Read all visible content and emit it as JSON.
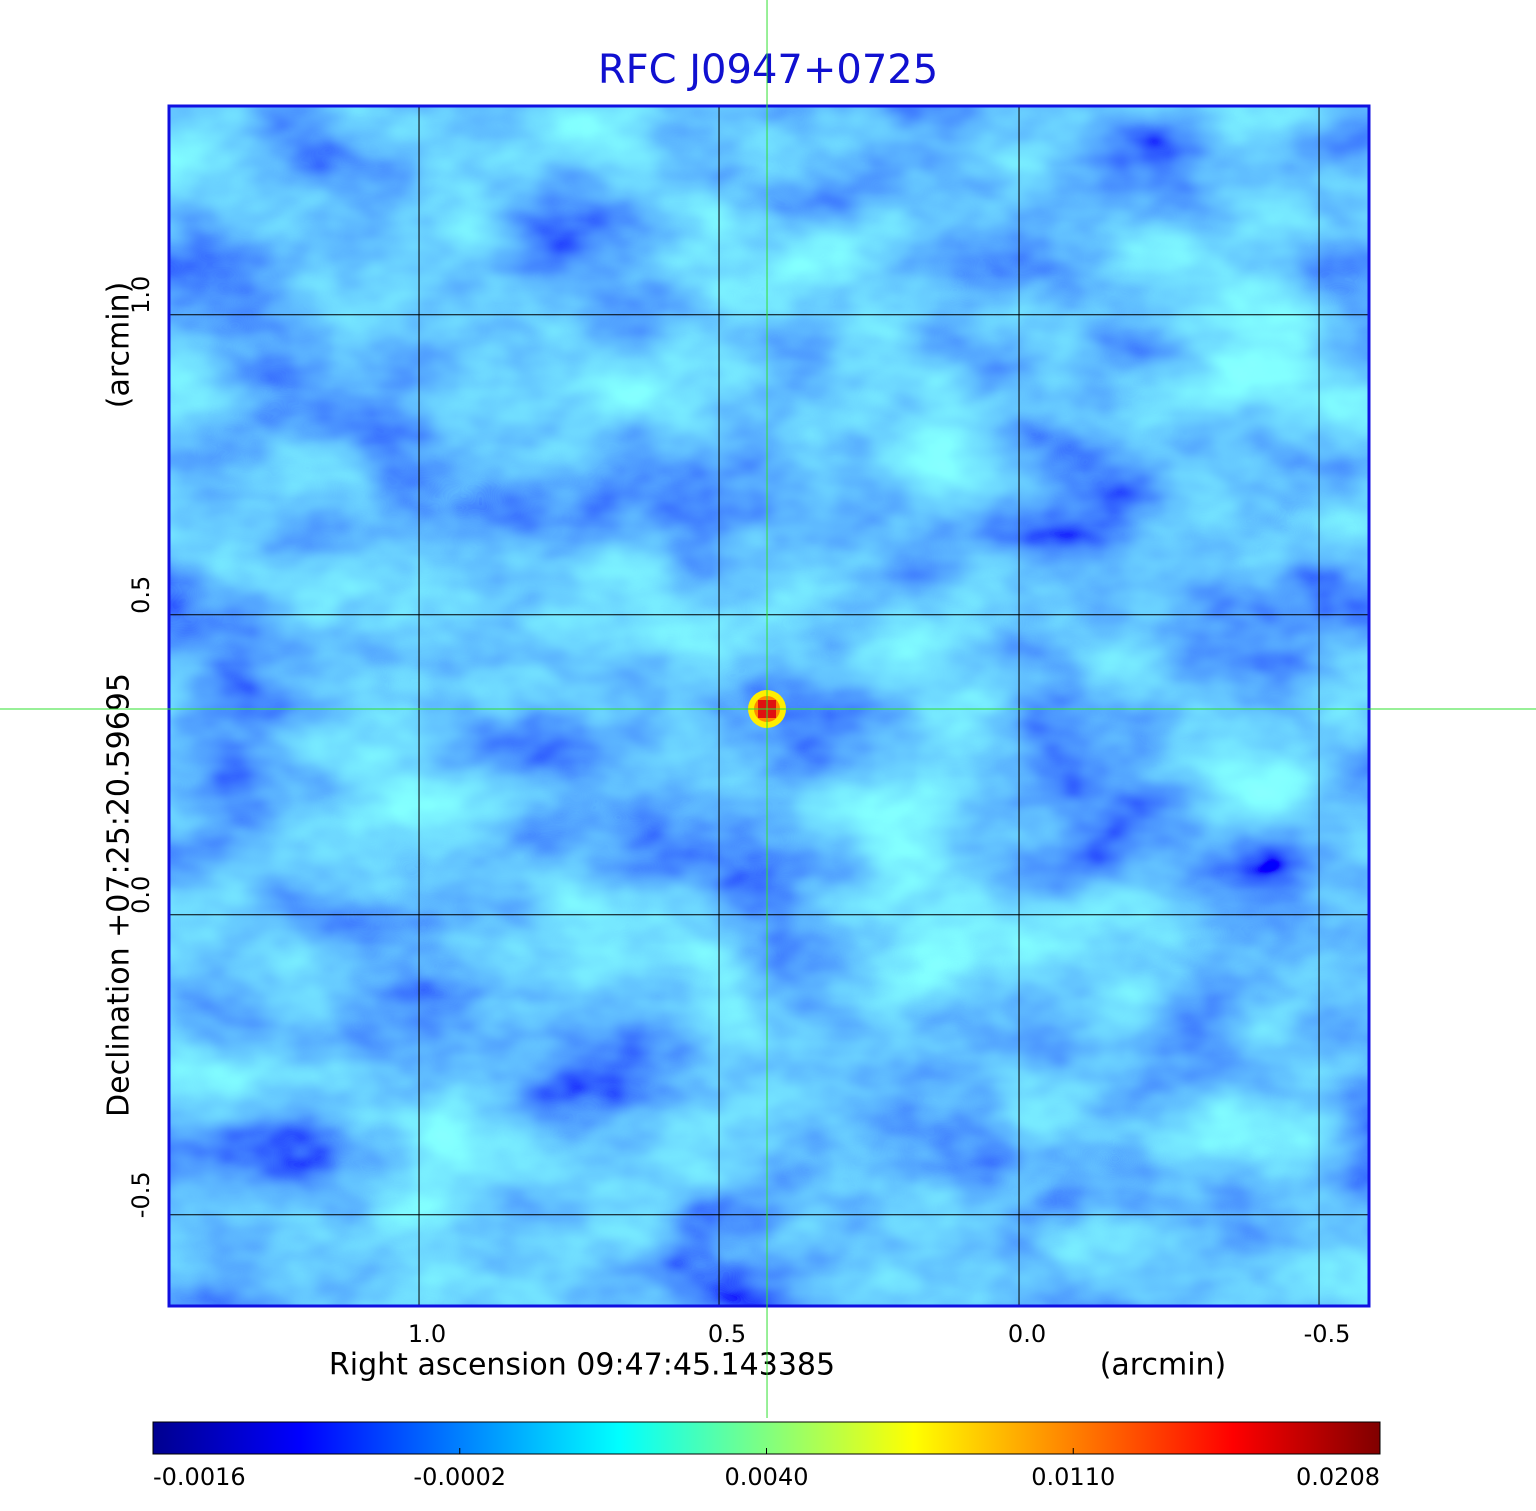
{
  "chart_data": {
    "type": "image",
    "title": "RFC J0947+0725",
    "xlabel": "Right ascension  09:47:45.143385",
    "xunit": "(arcmin)",
    "ylabel": "Declination  +07:25:20.59695",
    "yunit": "(arcmin)",
    "xlim": [
      1.4167,
      -0.5833
    ],
    "ylim": [
      -0.652,
      1.348
    ],
    "xticks": [
      {
        "value": 1.0,
        "label": "1.0"
      },
      0.5,
      {
        "value": 0.0,
        "label": "0.0"
      },
      -0.5
    ],
    "yticks": [
      -0.5,
      {
        "value": 0.0,
        "label": "0.0"
      },
      0.5,
      {
        "value": 1.0,
        "label": "1.0"
      }
    ],
    "grid": true,
    "source": {
      "x": 0.42,
      "y": 0.343
    },
    "colorbar_ticks": [
      -0.0016,
      -0.0002,
      {
        "value": 0.004,
        "label": "0.0040"
      },
      {
        "value": 0.011,
        "label": "0.0110"
      },
      0.0208
    ]
  }
}
